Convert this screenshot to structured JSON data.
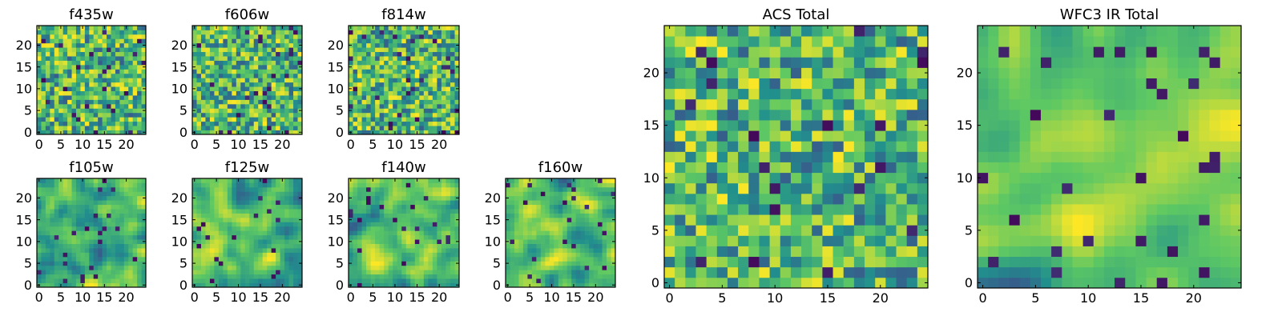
{
  "chart_data": [
    {
      "type": "heatmap",
      "title": "f435w",
      "grid": [
        25,
        25
      ],
      "xticks": [
        0,
        5,
        10,
        15,
        20
      ],
      "yticks": [
        0,
        5,
        10,
        15,
        20
      ],
      "xlim": [
        0,
        25
      ],
      "ylim": [
        0,
        25
      ],
      "value_range": [
        0,
        1
      ],
      "seed": 11,
      "smooth": 0
    },
    {
      "type": "heatmap",
      "title": "f606w",
      "grid": [
        25,
        25
      ],
      "xticks": [
        0,
        5,
        10,
        15,
        20
      ],
      "yticks": [
        0,
        5,
        10,
        15,
        20
      ],
      "xlim": [
        0,
        25
      ],
      "ylim": [
        0,
        25
      ],
      "value_range": [
        0,
        1
      ],
      "seed": 23,
      "smooth": 0
    },
    {
      "type": "heatmap",
      "title": "f814w",
      "grid": [
        25,
        25
      ],
      "xticks": [
        0,
        5,
        10,
        15,
        20
      ],
      "yticks": [
        0,
        5,
        10,
        15,
        20
      ],
      "xlim": [
        0,
        25
      ],
      "ylim": [
        0,
        25
      ],
      "value_range": [
        0,
        1
      ],
      "seed": 37,
      "smooth": 0
    },
    {
      "type": "heatmap",
      "title": "f105w",
      "grid": [
        25,
        25
      ],
      "xticks": [
        0,
        5,
        10,
        15,
        20
      ],
      "yticks": [
        0,
        5,
        10,
        15,
        20
      ],
      "xlim": [
        0,
        25
      ],
      "ylim": [
        0,
        25
      ],
      "value_range": [
        0,
        1
      ],
      "seed": 41,
      "smooth": 2
    },
    {
      "type": "heatmap",
      "title": "f125w",
      "grid": [
        25,
        25
      ],
      "xticks": [
        0,
        5,
        10,
        15,
        20
      ],
      "yticks": [
        0,
        5,
        10,
        15,
        20
      ],
      "xlim": [
        0,
        25
      ],
      "ylim": [
        0,
        25
      ],
      "value_range": [
        0,
        1
      ],
      "seed": 53,
      "smooth": 2
    },
    {
      "type": "heatmap",
      "title": "f140w",
      "grid": [
        25,
        25
      ],
      "xticks": [
        0,
        5,
        10,
        15,
        20
      ],
      "yticks": [
        0,
        5,
        10,
        15,
        20
      ],
      "xlim": [
        0,
        25
      ],
      "ylim": [
        0,
        25
      ],
      "value_range": [
        0,
        1
      ],
      "seed": 67,
      "smooth": 2
    },
    {
      "type": "heatmap",
      "title": "f160w",
      "grid": [
        25,
        25
      ],
      "xticks": [
        0,
        5,
        10,
        15,
        20
      ],
      "yticks": [
        0,
        5,
        10,
        15,
        20
      ],
      "xlim": [
        0,
        25
      ],
      "ylim": [
        0,
        25
      ],
      "value_range": [
        0,
        1
      ],
      "seed": 71,
      "smooth": 2
    },
    {
      "type": "heatmap",
      "title": "ACS Total",
      "grid": [
        25,
        25
      ],
      "xticks": [
        0,
        5,
        10,
        15,
        20
      ],
      "yticks": [
        0,
        5,
        10,
        15,
        20
      ],
      "xlim": [
        0,
        25
      ],
      "ylim": [
        0,
        25
      ],
      "value_range": [
        0,
        1
      ],
      "seed": 83,
      "smooth": 0
    },
    {
      "type": "heatmap",
      "title": "WFC3 IR Total",
      "grid": [
        25,
        25
      ],
      "xticks": [
        0,
        5,
        10,
        15,
        20
      ],
      "yticks": [
        0,
        5,
        10,
        15,
        20
      ],
      "xlim": [
        0,
        25
      ],
      "ylim": [
        0,
        25
      ],
      "value_range": [
        0,
        1
      ],
      "seed": 97,
      "smooth": 3
    }
  ],
  "colormap": [
    "#440154",
    "#3b528b",
    "#21908d",
    "#5dc863",
    "#fde725"
  ]
}
